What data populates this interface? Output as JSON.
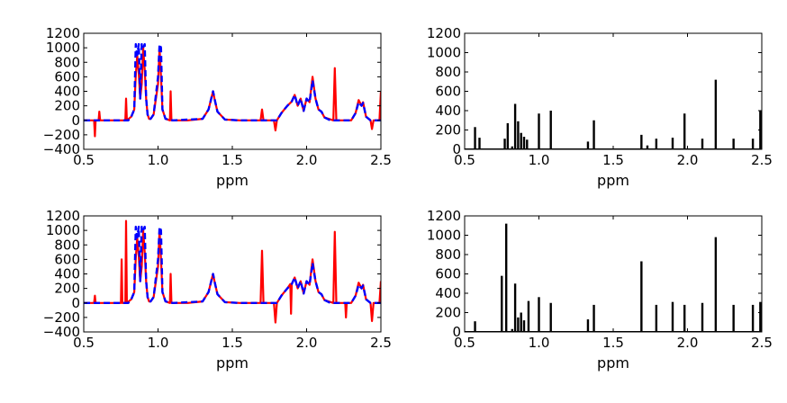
{
  "chart_data": [
    {
      "type": "line",
      "xlabel": "ppm",
      "xlim": [
        0.5,
        2.5
      ],
      "ylim": [
        -400,
        1200
      ],
      "xticks": [
        "0.5",
        "1.0",
        "1.5",
        "2.0",
        "2.5"
      ],
      "yticks": [
        "−400",
        "−200",
        "0",
        "200",
        "400",
        "600",
        "800",
        "1000",
        "1200"
      ],
      "series": [
        {
          "color": "#ff0000",
          "style": "solid",
          "x": [
            0.5,
            0.57,
            0.575,
            0.58,
            0.6,
            0.605,
            0.61,
            0.62,
            0.78,
            0.785,
            0.79,
            0.82,
            0.84,
            0.85,
            0.86,
            0.87,
            0.88,
            0.89,
            0.9,
            0.91,
            0.92,
            0.93,
            0.94,
            0.95,
            0.97,
            1.0,
            1.01,
            1.02,
            1.03,
            1.05,
            1.08,
            1.085,
            1.09,
            1.2,
            1.3,
            1.34,
            1.37,
            1.38,
            1.4,
            1.45,
            1.55,
            1.69,
            1.7,
            1.71,
            1.78,
            1.79,
            1.8,
            1.83,
            1.87,
            1.9,
            1.92,
            1.94,
            1.96,
            1.98,
            2.0,
            2.02,
            2.04,
            2.06,
            2.08,
            2.1,
            2.12,
            2.18,
            2.19,
            2.2,
            2.21,
            2.3,
            2.33,
            2.35,
            2.37,
            2.38,
            2.4,
            2.43,
            2.44,
            2.45,
            2.46,
            2.49,
            2.5
          ],
          "y": [
            0,
            0,
            -220,
            0,
            0,
            120,
            0,
            0,
            0,
            300,
            0,
            50,
            150,
            620,
            900,
            650,
            300,
            500,
            1000,
            700,
            300,
            80,
            20,
            20,
            80,
            500,
            1000,
            600,
            150,
            20,
            0,
            400,
            0,
            0,
            20,
            150,
            400,
            300,
            120,
            10,
            0,
            0,
            150,
            0,
            0,
            -140,
            0,
            100,
            200,
            260,
            350,
            200,
            300,
            130,
            300,
            250,
            600,
            300,
            150,
            120,
            40,
            0,
            720,
            0,
            0,
            0,
            100,
            280,
            200,
            250,
            50,
            0,
            -120,
            0,
            0,
            0,
            400
          ]
        },
        {
          "color": "#0000ff",
          "style": "dashed",
          "x": [
            0.5,
            0.8,
            0.82,
            0.84,
            0.85,
            0.86,
            0.87,
            0.88,
            0.89,
            0.9,
            0.91,
            0.92,
            0.93,
            0.94,
            0.95,
            0.97,
            1.0,
            1.01,
            1.02,
            1.03,
            1.05,
            1.1,
            1.3,
            1.34,
            1.37,
            1.38,
            1.4,
            1.45,
            1.55,
            1.8,
            1.83,
            1.87,
            1.9,
            1.92,
            1.94,
            1.96,
            1.98,
            2.0,
            2.02,
            2.04,
            2.06,
            2.08,
            2.1,
            2.12,
            2.16,
            2.3,
            2.33,
            2.35,
            2.37,
            2.38,
            2.4,
            2.43,
            2.5
          ],
          "y": [
            0,
            0,
            50,
            150,
            1050,
            900,
            1050,
            300,
            1050,
            1000,
            1050,
            300,
            80,
            20,
            20,
            80,
            600,
            1050,
            1000,
            150,
            20,
            0,
            20,
            150,
            400,
            300,
            120,
            10,
            0,
            0,
            100,
            200,
            260,
            350,
            200,
            300,
            130,
            300,
            250,
            550,
            300,
            150,
            120,
            40,
            0,
            0,
            100,
            250,
            200,
            240,
            50,
            0,
            0
          ]
        }
      ]
    },
    {
      "type": "bar",
      "xlabel": "ppm",
      "xlim": [
        0.5,
        2.5
      ],
      "ylim": [
        0,
        1200
      ],
      "xticks": [
        "0.5",
        "1.0",
        "1.5",
        "2.0",
        "2.5"
      ],
      "yticks": [
        "0",
        "200",
        "400",
        "600",
        "800",
        "1000",
        "1200"
      ],
      "color": "#000000",
      "sticks": [
        [
          0.57,
          230
        ],
        [
          0.6,
          120
        ],
        [
          0.77,
          110
        ],
        [
          0.79,
          270
        ],
        [
          0.82,
          30
        ],
        [
          0.84,
          470
        ],
        [
          0.86,
          290
        ],
        [
          0.88,
          170
        ],
        [
          0.9,
          130
        ],
        [
          0.92,
          100
        ],
        [
          1.0,
          370
        ],
        [
          1.08,
          400
        ],
        [
          1.33,
          80
        ],
        [
          1.37,
          300
        ],
        [
          1.69,
          150
        ],
        [
          1.73,
          40
        ],
        [
          1.79,
          110
        ],
        [
          1.9,
          120
        ],
        [
          1.98,
          370
        ],
        [
          2.1,
          110
        ],
        [
          2.19,
          720
        ],
        [
          2.31,
          110
        ],
        [
          2.44,
          110
        ],
        [
          2.49,
          400
        ]
      ]
    },
    {
      "type": "line",
      "xlabel": "ppm",
      "xlim": [
        0.5,
        2.5
      ],
      "ylim": [
        -400,
        1200
      ],
      "xticks": [
        "0.5",
        "1.0",
        "1.5",
        "2.0",
        "2.5"
      ],
      "yticks": [
        "−400",
        "−200",
        "0",
        "200",
        "400",
        "600",
        "800",
        "1000",
        "1200"
      ],
      "series": [
        {
          "color": "#ff0000",
          "style": "solid",
          "x": [
            0.5,
            0.57,
            0.575,
            0.58,
            0.75,
            0.755,
            0.76,
            0.78,
            0.785,
            0.79,
            0.82,
            0.84,
            0.85,
            0.86,
            0.87,
            0.88,
            0.89,
            0.9,
            0.91,
            0.92,
            0.93,
            0.94,
            0.95,
            0.97,
            1.0,
            1.01,
            1.02,
            1.03,
            1.05,
            1.08,
            1.085,
            1.09,
            1.2,
            1.3,
            1.34,
            1.37,
            1.38,
            1.4,
            1.45,
            1.55,
            1.69,
            1.7,
            1.71,
            1.78,
            1.79,
            1.8,
            1.83,
            1.87,
            1.89,
            1.895,
            1.9,
            1.92,
            1.94,
            1.96,
            1.98,
            2.0,
            2.02,
            2.04,
            2.06,
            2.08,
            2.1,
            2.12,
            2.18,
            2.19,
            2.2,
            2.21,
            2.26,
            2.265,
            2.27,
            2.3,
            2.33,
            2.35,
            2.37,
            2.38,
            2.4,
            2.43,
            2.44,
            2.45,
            2.46,
            2.49,
            2.5
          ],
          "y": [
            0,
            0,
            100,
            0,
            0,
            600,
            0,
            0,
            1130,
            0,
            50,
            150,
            620,
            900,
            650,
            300,
            500,
            1000,
            700,
            300,
            80,
            20,
            20,
            80,
            500,
            1000,
            600,
            150,
            20,
            0,
            400,
            0,
            0,
            20,
            150,
            400,
            300,
            120,
            10,
            0,
            0,
            720,
            0,
            0,
            -270,
            0,
            100,
            200,
            260,
            -150,
            260,
            350,
            200,
            300,
            130,
            300,
            250,
            600,
            300,
            150,
            120,
            40,
            0,
            980,
            0,
            0,
            0,
            -200,
            0,
            0,
            100,
            280,
            200,
            250,
            50,
            0,
            -250,
            0,
            0,
            0,
            300
          ]
        },
        {
          "color": "#0000ff",
          "style": "dashed",
          "x": [
            0.5,
            0.8,
            0.82,
            0.84,
            0.85,
            0.86,
            0.87,
            0.88,
            0.89,
            0.9,
            0.91,
            0.92,
            0.93,
            0.94,
            0.95,
            0.97,
            1.0,
            1.01,
            1.02,
            1.03,
            1.05,
            1.1,
            1.3,
            1.34,
            1.37,
            1.38,
            1.4,
            1.45,
            1.55,
            1.8,
            1.83,
            1.87,
            1.9,
            1.92,
            1.94,
            1.96,
            1.98,
            2.0,
            2.02,
            2.04,
            2.06,
            2.08,
            2.1,
            2.12,
            2.16,
            2.3,
            2.33,
            2.35,
            2.37,
            2.38,
            2.4,
            2.43,
            2.5
          ],
          "y": [
            0,
            0,
            50,
            150,
            1050,
            900,
            1050,
            300,
            1050,
            1000,
            1050,
            300,
            80,
            20,
            20,
            80,
            600,
            1050,
            1000,
            150,
            20,
            0,
            20,
            150,
            400,
            300,
            120,
            10,
            0,
            0,
            100,
            200,
            260,
            350,
            200,
            300,
            130,
            300,
            250,
            550,
            300,
            150,
            120,
            40,
            0,
            0,
            100,
            250,
            200,
            240,
            50,
            0,
            0
          ]
        }
      ]
    },
    {
      "type": "bar",
      "xlabel": "ppm",
      "xlim": [
        0.5,
        2.5
      ],
      "ylim": [
        0,
        1200
      ],
      "xticks": [
        "0.5",
        "1.0",
        "1.5",
        "2.0",
        "2.5"
      ],
      "yticks": [
        "0",
        "200",
        "400",
        "600",
        "800",
        "1000",
        "1200"
      ],
      "color": "#000000",
      "sticks": [
        [
          0.57,
          110
        ],
        [
          0.75,
          580
        ],
        [
          0.78,
          1120
        ],
        [
          0.82,
          30
        ],
        [
          0.84,
          500
        ],
        [
          0.86,
          150
        ],
        [
          0.88,
          200
        ],
        [
          0.9,
          120
        ],
        [
          0.93,
          320
        ],
        [
          1.0,
          360
        ],
        [
          1.08,
          300
        ],
        [
          1.33,
          130
        ],
        [
          1.37,
          280
        ],
        [
          1.69,
          730
        ],
        [
          1.79,
          280
        ],
        [
          1.9,
          310
        ],
        [
          1.98,
          280
        ],
        [
          2.1,
          300
        ],
        [
          2.19,
          980
        ],
        [
          2.31,
          280
        ],
        [
          2.44,
          280
        ],
        [
          2.49,
          310
        ]
      ]
    }
  ]
}
